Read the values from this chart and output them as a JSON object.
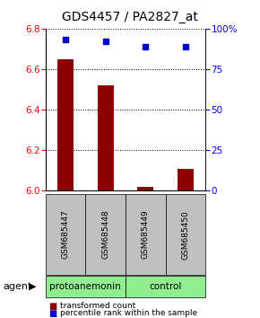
{
  "title": "GDS4457 / PA2827_at",
  "samples": [
    "GSM685447",
    "GSM685448",
    "GSM685449",
    "GSM685450"
  ],
  "red_values": [
    6.65,
    6.52,
    6.02,
    6.11
  ],
  "blue_values": [
    93,
    92,
    89,
    89
  ],
  "ylim_left": [
    6.0,
    6.8
  ],
  "ylim_right": [
    0,
    100
  ],
  "yticks_left": [
    6.0,
    6.2,
    6.4,
    6.6,
    6.8
  ],
  "yticks_right": [
    0,
    25,
    50,
    75,
    100
  ],
  "ytick_labels_right": [
    "0",
    "25",
    "50",
    "75",
    "100%"
  ],
  "group_defs": [
    {
      "label": "protoanemonin",
      "start": 0,
      "end": 2
    },
    {
      "label": "control",
      "start": 2,
      "end": 4
    }
  ],
  "group_label": "agent",
  "bar_color": "#8B0000",
  "dot_color": "#0000CC",
  "background_color": "#ffffff",
  "label_bg_color": "#C0C0C0",
  "group_bg_color": "#90EE90",
  "legend_red": "transformed count",
  "legend_blue": "percentile rank within the sample",
  "bar_width": 0.4
}
